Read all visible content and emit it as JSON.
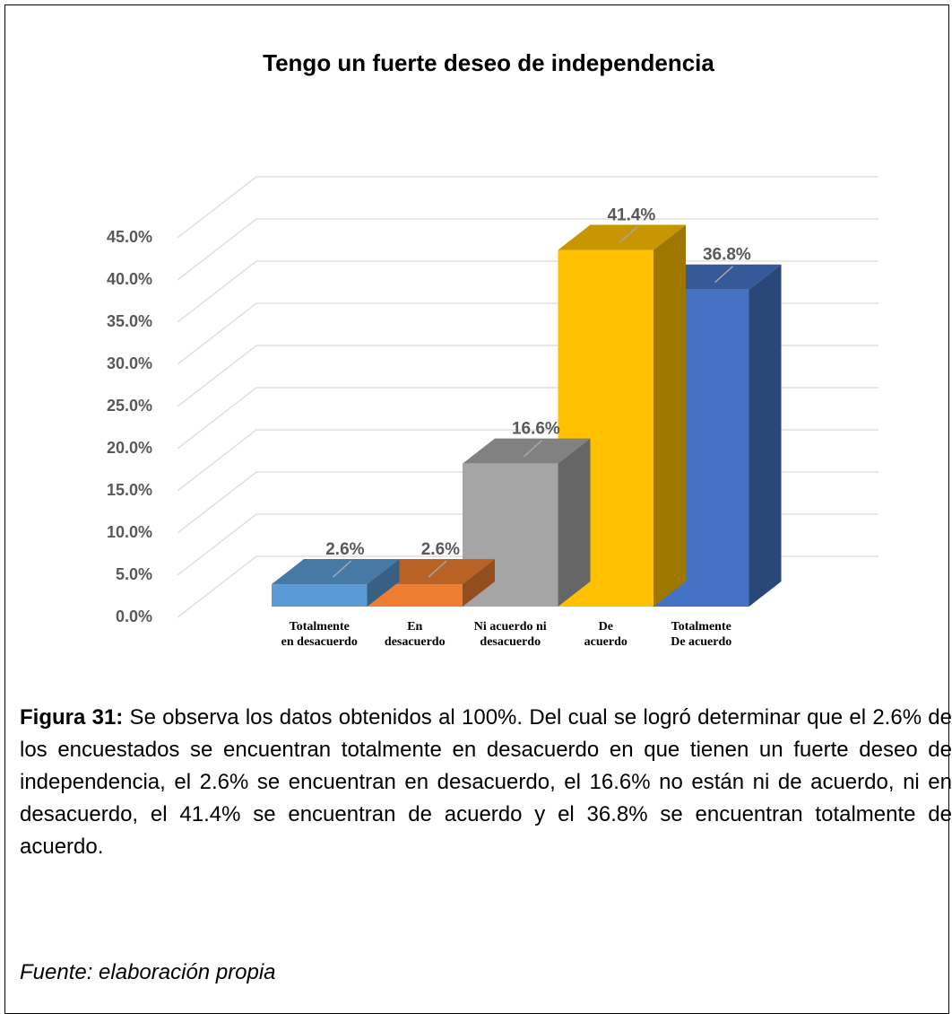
{
  "chart_data": {
    "type": "bar3d",
    "title": "Tengo un fuerte deseo de independencia",
    "categories": [
      "Totalmente\nen desacuerdo",
      "En\ndesacuerdo",
      "Ni acuerdo ni\ndesacuerdo",
      "De\nacuerdo",
      "Totalmente\nDe acuerdo"
    ],
    "values": [
      2.6,
      2.6,
      16.6,
      41.4,
      36.8
    ],
    "value_labels": [
      "2.6%",
      "2.6%",
      "16.6%",
      "41.4%",
      "36.8%"
    ],
    "colors": [
      "#5b9bd5",
      "#ed7d31",
      "#a5a5a5",
      "#ffc000",
      "#4472c4"
    ],
    "ylim": [
      0,
      45
    ],
    "yticks": [
      {
        "value": 0,
        "label": "0.0%"
      },
      {
        "value": 5,
        "label": "5.0%"
      },
      {
        "value": 10,
        "label": "10.0%"
      },
      {
        "value": 15,
        "label": "15.0%"
      },
      {
        "value": 20,
        "label": "20.0%"
      },
      {
        "value": 25,
        "label": "25.0%"
      },
      {
        "value": 30,
        "label": "30.0%"
      },
      {
        "value": 35,
        "label": "35.0%"
      },
      {
        "value": 40,
        "label": "40.0%"
      },
      {
        "value": 45,
        "label": "45.0%"
      }
    ],
    "grid": true
  },
  "caption": {
    "label": "Figura 31:",
    "text": " Se observa los datos obtenidos al 100%. Del cual se logró determinar que el 2.6% de los encuestados se encuentran totalmente en desacuerdo en que tienen un fuerte deseo de independencia, el 2.6% se encuentran en desacuerdo, el 16.6% no están ni de acuerdo, ni en desacuerdo, el 41.4% se encuentran de acuerdo y el 36.8% se encuentran totalmente de acuerdo."
  },
  "source": "Fuente: elaboración propia"
}
